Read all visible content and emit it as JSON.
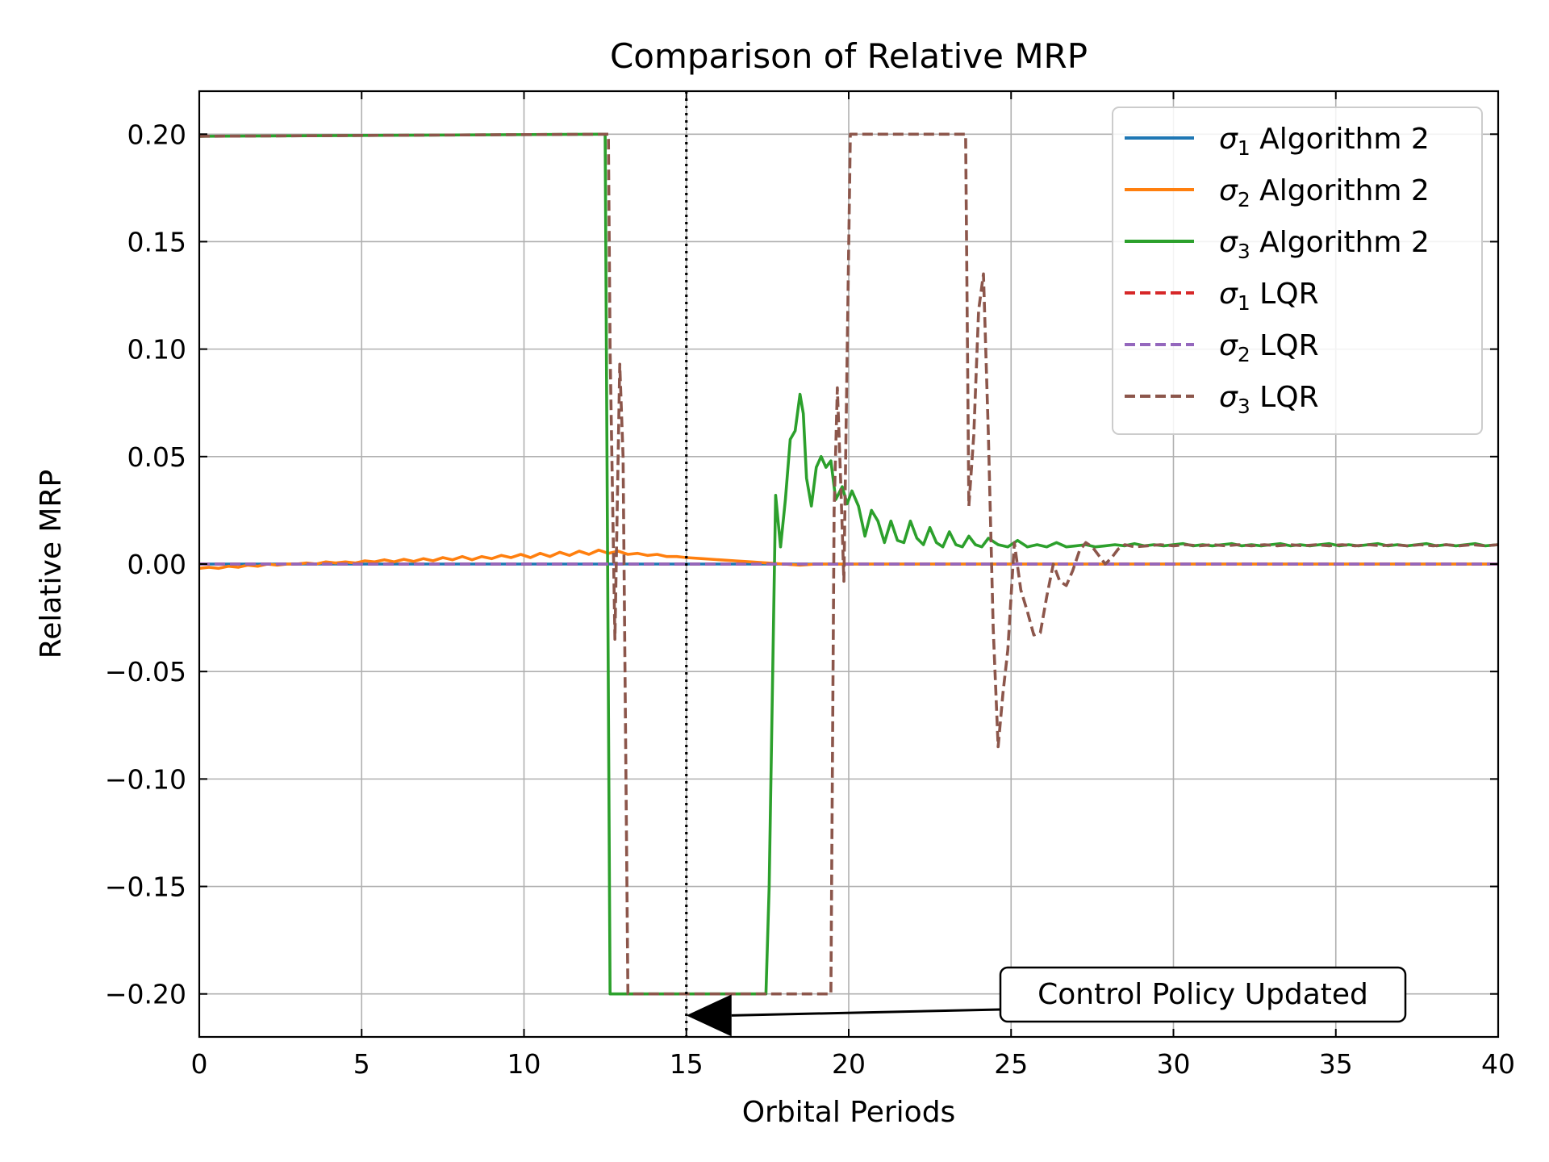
{
  "chart_data": {
    "type": "line",
    "title": "Comparison of Relative MRP",
    "xlabel": "Orbital Periods",
    "ylabel": "Relative MRP",
    "xlim": [
      0,
      40
    ],
    "ylim": [
      -0.22,
      0.22
    ],
    "xticks": [
      0,
      5,
      10,
      15,
      20,
      25,
      30,
      35,
      40
    ],
    "xtick_labels": [
      "0",
      "5",
      "10",
      "15",
      "20",
      "25",
      "30",
      "35",
      "40"
    ],
    "yticks": [
      -0.2,
      -0.15,
      -0.1,
      -0.05,
      0.0,
      0.05,
      0.1,
      0.15,
      0.2
    ],
    "ytick_labels": [
      "−0.20",
      "−0.15",
      "−0.10",
      "−0.05",
      "0.00",
      "0.05",
      "0.10",
      "0.15",
      "0.20"
    ],
    "grid": true,
    "legend_position": "top-right",
    "vline": {
      "x": 15,
      "style": "dotted",
      "color": "#000000"
    },
    "annotation": {
      "text": "Control Policy Updated",
      "arrow_to": [
        15,
        -0.21
      ],
      "text_at": [
        24.6,
        -0.2
      ]
    },
    "series": [
      {
        "name": "σ₁ Algorithm 2",
        "sym": "σ",
        "sub": "1",
        "method": "Algorithm 2",
        "color": "#1f77b4",
        "dash": "solid",
        "x": [
          0,
          40
        ],
        "y": [
          0.0,
          0.0
        ]
      },
      {
        "name": "σ₂ Algorithm 2",
        "sym": "σ",
        "sub": "2",
        "method": "Algorithm 2",
        "color": "#ff7f0e",
        "dash": "solid",
        "x": [
          0.0,
          0.3,
          0.6,
          0.9,
          1.2,
          1.5,
          1.8,
          2.1,
          2.4,
          2.7,
          3.0,
          3.3,
          3.6,
          3.9,
          4.2,
          4.5,
          4.8,
          5.1,
          5.4,
          5.7,
          6.0,
          6.3,
          6.6,
          6.9,
          7.2,
          7.5,
          7.8,
          8.1,
          8.4,
          8.7,
          9.0,
          9.3,
          9.6,
          9.9,
          10.2,
          10.5,
          10.8,
          11.1,
          11.4,
          11.7,
          12.0,
          12.3,
          12.6,
          12.9,
          13.2,
          13.5,
          13.8,
          14.1,
          14.4,
          14.7,
          15.0,
          15.5,
          16.0,
          16.5,
          17.0,
          17.5,
          18.0,
          18.5,
          19.0,
          19.5,
          20.0,
          22.0,
          25.0,
          30.0,
          35.0,
          40.0
        ],
        "y": [
          -0.002,
          -0.0015,
          -0.002,
          -0.001,
          -0.0015,
          -0.0005,
          -0.001,
          0.0,
          -0.0005,
          0.0,
          0.0,
          0.0005,
          0.0,
          0.001,
          0.0005,
          0.001,
          0.0005,
          0.0015,
          0.001,
          0.002,
          0.001,
          0.0022,
          0.0012,
          0.0025,
          0.0015,
          0.003,
          0.002,
          0.0035,
          0.002,
          0.0035,
          0.0025,
          0.004,
          0.003,
          0.0045,
          0.003,
          0.005,
          0.0035,
          0.0055,
          0.004,
          0.006,
          0.0045,
          0.0065,
          0.005,
          0.006,
          0.0045,
          0.005,
          0.004,
          0.0045,
          0.0035,
          0.0035,
          0.003,
          0.0025,
          0.002,
          0.0015,
          0.001,
          0.0005,
          0.0,
          -0.0005,
          0.0,
          0.0,
          0.0,
          0.0,
          0.0,
          0.0,
          0.0,
          0.0
        ]
      },
      {
        "name": "σ₃ Algorithm 2",
        "sym": "σ",
        "sub": "3",
        "method": "Algorithm 2",
        "color": "#2ca02c",
        "dash": "solid",
        "x": [
          0.0,
          12.4,
          12.5,
          12.65,
          17.45,
          17.55,
          17.75,
          17.9,
          18.05,
          18.2,
          18.35,
          18.5,
          18.6,
          18.7,
          18.85,
          19.0,
          19.15,
          19.3,
          19.45,
          19.6,
          19.8,
          19.95,
          20.1,
          20.3,
          20.5,
          20.7,
          20.9,
          21.1,
          21.3,
          21.5,
          21.7,
          21.9,
          22.1,
          22.3,
          22.5,
          22.7,
          22.9,
          23.1,
          23.3,
          23.5,
          23.7,
          23.9,
          24.1,
          24.3,
          24.6,
          24.9,
          25.2,
          25.5,
          25.8,
          26.1,
          26.4,
          26.7,
          27.0,
          27.3,
          27.6,
          27.9,
          28.2,
          28.5,
          28.8,
          29.1,
          29.4,
          29.7,
          30.0,
          30.3,
          30.6,
          30.9,
          31.2,
          31.5,
          31.8,
          32.1,
          32.4,
          32.7,
          33.0,
          33.3,
          33.6,
          33.9,
          34.2,
          34.5,
          34.8,
          35.1,
          35.4,
          35.7,
          36.0,
          36.3,
          36.6,
          36.9,
          37.2,
          37.5,
          37.8,
          38.1,
          38.4,
          38.7,
          39.0,
          39.3,
          39.6,
          40.0
        ],
        "y": [
          0.199,
          0.2,
          0.2,
          -0.2,
          -0.2,
          -0.15,
          0.032,
          0.008,
          0.03,
          0.058,
          0.062,
          0.079,
          0.07,
          0.04,
          0.027,
          0.045,
          0.05,
          0.045,
          0.048,
          0.03,
          0.036,
          0.028,
          0.034,
          0.027,
          0.013,
          0.025,
          0.02,
          0.01,
          0.02,
          0.011,
          0.01,
          0.02,
          0.012,
          0.009,
          0.017,
          0.01,
          0.008,
          0.015,
          0.009,
          0.008,
          0.013,
          0.009,
          0.008,
          0.012,
          0.009,
          0.008,
          0.011,
          0.008,
          0.009,
          0.008,
          0.01,
          0.008,
          0.0085,
          0.009,
          0.008,
          0.0085,
          0.009,
          0.0085,
          0.0095,
          0.0085,
          0.009,
          0.0085,
          0.009,
          0.0095,
          0.0085,
          0.009,
          0.0085,
          0.009,
          0.0095,
          0.0085,
          0.009,
          0.0085,
          0.009,
          0.0095,
          0.0085,
          0.009,
          0.0085,
          0.009,
          0.0095,
          0.0085,
          0.009,
          0.0085,
          0.009,
          0.0095,
          0.0085,
          0.009,
          0.0085,
          0.009,
          0.0095,
          0.0085,
          0.009,
          0.0085,
          0.009,
          0.0095,
          0.0085,
          0.009
        ]
      },
      {
        "name": "σ₁ LQR",
        "sym": "σ",
        "sub": "1",
        "method": "LQR",
        "color": "#d62728",
        "dash": "dashed",
        "x": [
          0,
          40
        ],
        "y": [
          0.0,
          0.0
        ]
      },
      {
        "name": "σ₂ LQR",
        "sym": "σ",
        "sub": "2",
        "method": "LQR",
        "color": "#9467bd",
        "dash": "dashed",
        "x": [
          0,
          40
        ],
        "y": [
          0.0,
          0.0
        ]
      },
      {
        "name": "σ₃ LQR",
        "sym": "σ",
        "sub": "3",
        "method": "LQR",
        "color": "#8c564b",
        "dash": "dashed",
        "x": [
          0.0,
          12.6,
          12.65,
          12.8,
          12.95,
          13.05,
          13.2,
          13.35,
          19.45,
          19.55,
          19.65,
          19.75,
          19.85,
          20.05,
          20.15,
          23.6,
          23.7,
          23.85,
          24.0,
          24.15,
          24.3,
          24.45,
          24.6,
          24.75,
          24.9,
          25.1,
          25.3,
          25.5,
          25.7,
          25.9,
          26.1,
          26.3,
          26.5,
          26.7,
          26.9,
          27.1,
          27.3,
          27.5,
          27.7,
          27.9,
          28.1,
          28.3,
          28.5,
          28.8,
          29.2,
          29.6,
          30.0,
          30.4,
          30.8,
          31.2,
          31.6,
          32.0,
          32.4,
          32.8,
          33.2,
          33.6,
          34.0,
          34.4,
          34.8,
          35.2,
          35.6,
          36.0,
          36.4,
          36.8,
          37.2,
          37.6,
          38.0,
          38.4,
          38.8,
          39.2,
          39.6,
          40.0
        ],
        "y": [
          0.199,
          0.2,
          0.1,
          -0.035,
          0.093,
          0.05,
          -0.2,
          -0.2,
          -0.2,
          0.025,
          0.082,
          0.04,
          -0.008,
          0.2,
          0.2,
          0.2,
          0.027,
          0.06,
          0.118,
          0.135,
          0.06,
          -0.03,
          -0.085,
          -0.06,
          -0.04,
          0.01,
          -0.012,
          -0.022,
          -0.033,
          -0.032,
          -0.015,
          0.0,
          -0.008,
          -0.01,
          -0.003,
          0.006,
          0.01,
          0.008,
          0.004,
          0.0,
          0.003,
          0.007,
          0.009,
          0.008,
          0.0085,
          0.009,
          0.0085,
          0.009,
          0.0085,
          0.009,
          0.0085,
          0.009,
          0.0085,
          0.009,
          0.0085,
          0.009,
          0.0085,
          0.009,
          0.0085,
          0.009,
          0.0085,
          0.009,
          0.0085,
          0.009,
          0.0085,
          0.009,
          0.0085,
          0.009,
          0.0085,
          0.009,
          0.0085,
          0.009
        ]
      }
    ]
  }
}
